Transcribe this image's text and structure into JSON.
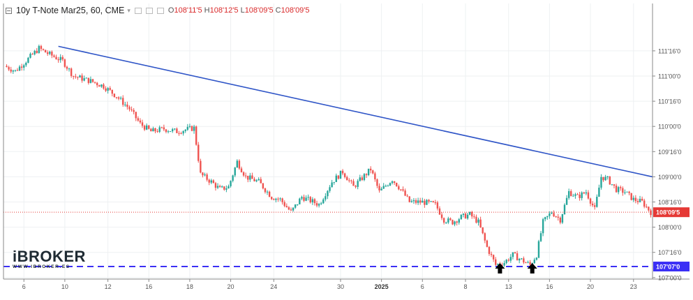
{
  "header": {
    "symbol": "10y T-Note Mar25, 60, CME",
    "open_label": "O",
    "open": "108'11'5",
    "high_label": "H",
    "high": "108'12'5",
    "low_label": "L",
    "low": "108'09'5",
    "close_label": "C",
    "close": "108'09'5"
  },
  "logo": {
    "name": "iBROKER",
    "url": "WWW.IBROKER.ES"
  },
  "colors": {
    "up": "#26a69a",
    "down": "#ef5350",
    "trendline": "#2f55c7",
    "support": "#3b2ff5",
    "price_line": "#e53935",
    "grid": "#eef0f2",
    "axis": "#555555"
  },
  "chart_data": {
    "type": "candlestick",
    "y_ticks": [
      "111'16'0",
      "111'00'0",
      "110'16'0",
      "110'00'0",
      "109'16'0",
      "109'00'0",
      "108'16'0",
      "108'00'0",
      "107'16'0",
      "107'00'0"
    ],
    "y_tick_values": [
      111.5,
      111.0,
      110.5,
      110.0,
      109.5,
      109.0,
      108.5,
      108.0,
      107.5,
      107.0
    ],
    "ylim": [
      106.97,
      112.44
    ],
    "x_ticks": [
      "6",
      "10",
      "12",
      "16",
      "18",
      "20",
      "24",
      "30",
      "2025",
      "6",
      "8",
      "13",
      "16",
      "20",
      "23"
    ],
    "x_tick_index": [
      8,
      27,
      47,
      66,
      85,
      104,
      124,
      155,
      174,
      193,
      213,
      233,
      252,
      271,
      291
    ],
    "bar_count": 300,
    "last_price_label": "108'09'5",
    "last_price": 108.297,
    "support_label": "107'07'0",
    "support_price": 107.219,
    "trendline": {
      "from": [
        24,
        111.59
      ],
      "to": [
        300,
        109.0
      ]
    },
    "markers": [
      {
        "type": "arrow-up",
        "index": 229
      },
      {
        "type": "arrow-up",
        "index": 244
      }
    ],
    "price_path": [
      [
        0,
        111.2
      ],
      [
        5,
        111.1
      ],
      [
        10,
        111.3
      ],
      [
        16,
        111.55
      ],
      [
        20,
        111.45
      ],
      [
        27,
        111.3
      ],
      [
        32,
        111.0
      ],
      [
        40,
        110.9
      ],
      [
        46,
        110.8
      ],
      [
        52,
        110.6
      ],
      [
        58,
        110.35
      ],
      [
        63,
        110.05
      ],
      [
        68,
        109.9
      ],
      [
        74,
        109.95
      ],
      [
        80,
        109.9
      ],
      [
        88,
        109.97
      ],
      [
        91,
        109.05
      ],
      [
        96,
        108.9
      ],
      [
        100,
        108.75
      ],
      [
        104,
        108.8
      ],
      [
        108,
        109.3
      ],
      [
        112,
        109.0
      ],
      [
        118,
        108.9
      ],
      [
        124,
        108.6
      ],
      [
        128,
        108.55
      ],
      [
        133,
        108.3
      ],
      [
        138,
        108.6
      ],
      [
        146,
        108.45
      ],
      [
        152,
        108.9
      ],
      [
        157,
        109.1
      ],
      [
        162,
        108.8
      ],
      [
        170,
        109.15
      ],
      [
        174,
        108.7
      ],
      [
        180,
        108.95
      ],
      [
        184,
        108.75
      ],
      [
        188,
        108.5
      ],
      [
        194,
        108.5
      ],
      [
        200,
        108.45
      ],
      [
        204,
        108.15
      ],
      [
        208,
        108.1
      ],
      [
        212,
        108.2
      ],
      [
        216,
        108.25
      ],
      [
        220,
        108.1
      ],
      [
        224,
        107.6
      ],
      [
        228,
        107.25
      ],
      [
        232,
        107.3
      ],
      [
        236,
        107.45
      ],
      [
        240,
        107.35
      ],
      [
        244,
        107.25
      ],
      [
        247,
        107.45
      ],
      [
        250,
        108.1
      ],
      [
        254,
        108.3
      ],
      [
        258,
        108.15
      ],
      [
        262,
        108.7
      ],
      [
        266,
        108.6
      ],
      [
        270,
        108.7
      ],
      [
        274,
        108.35
      ],
      [
        277,
        109.0
      ],
      [
        280,
        108.95
      ],
      [
        284,
        108.75
      ],
      [
        288,
        108.7
      ],
      [
        292,
        108.55
      ],
      [
        296,
        108.5
      ],
      [
        300,
        108.3
      ]
    ]
  }
}
